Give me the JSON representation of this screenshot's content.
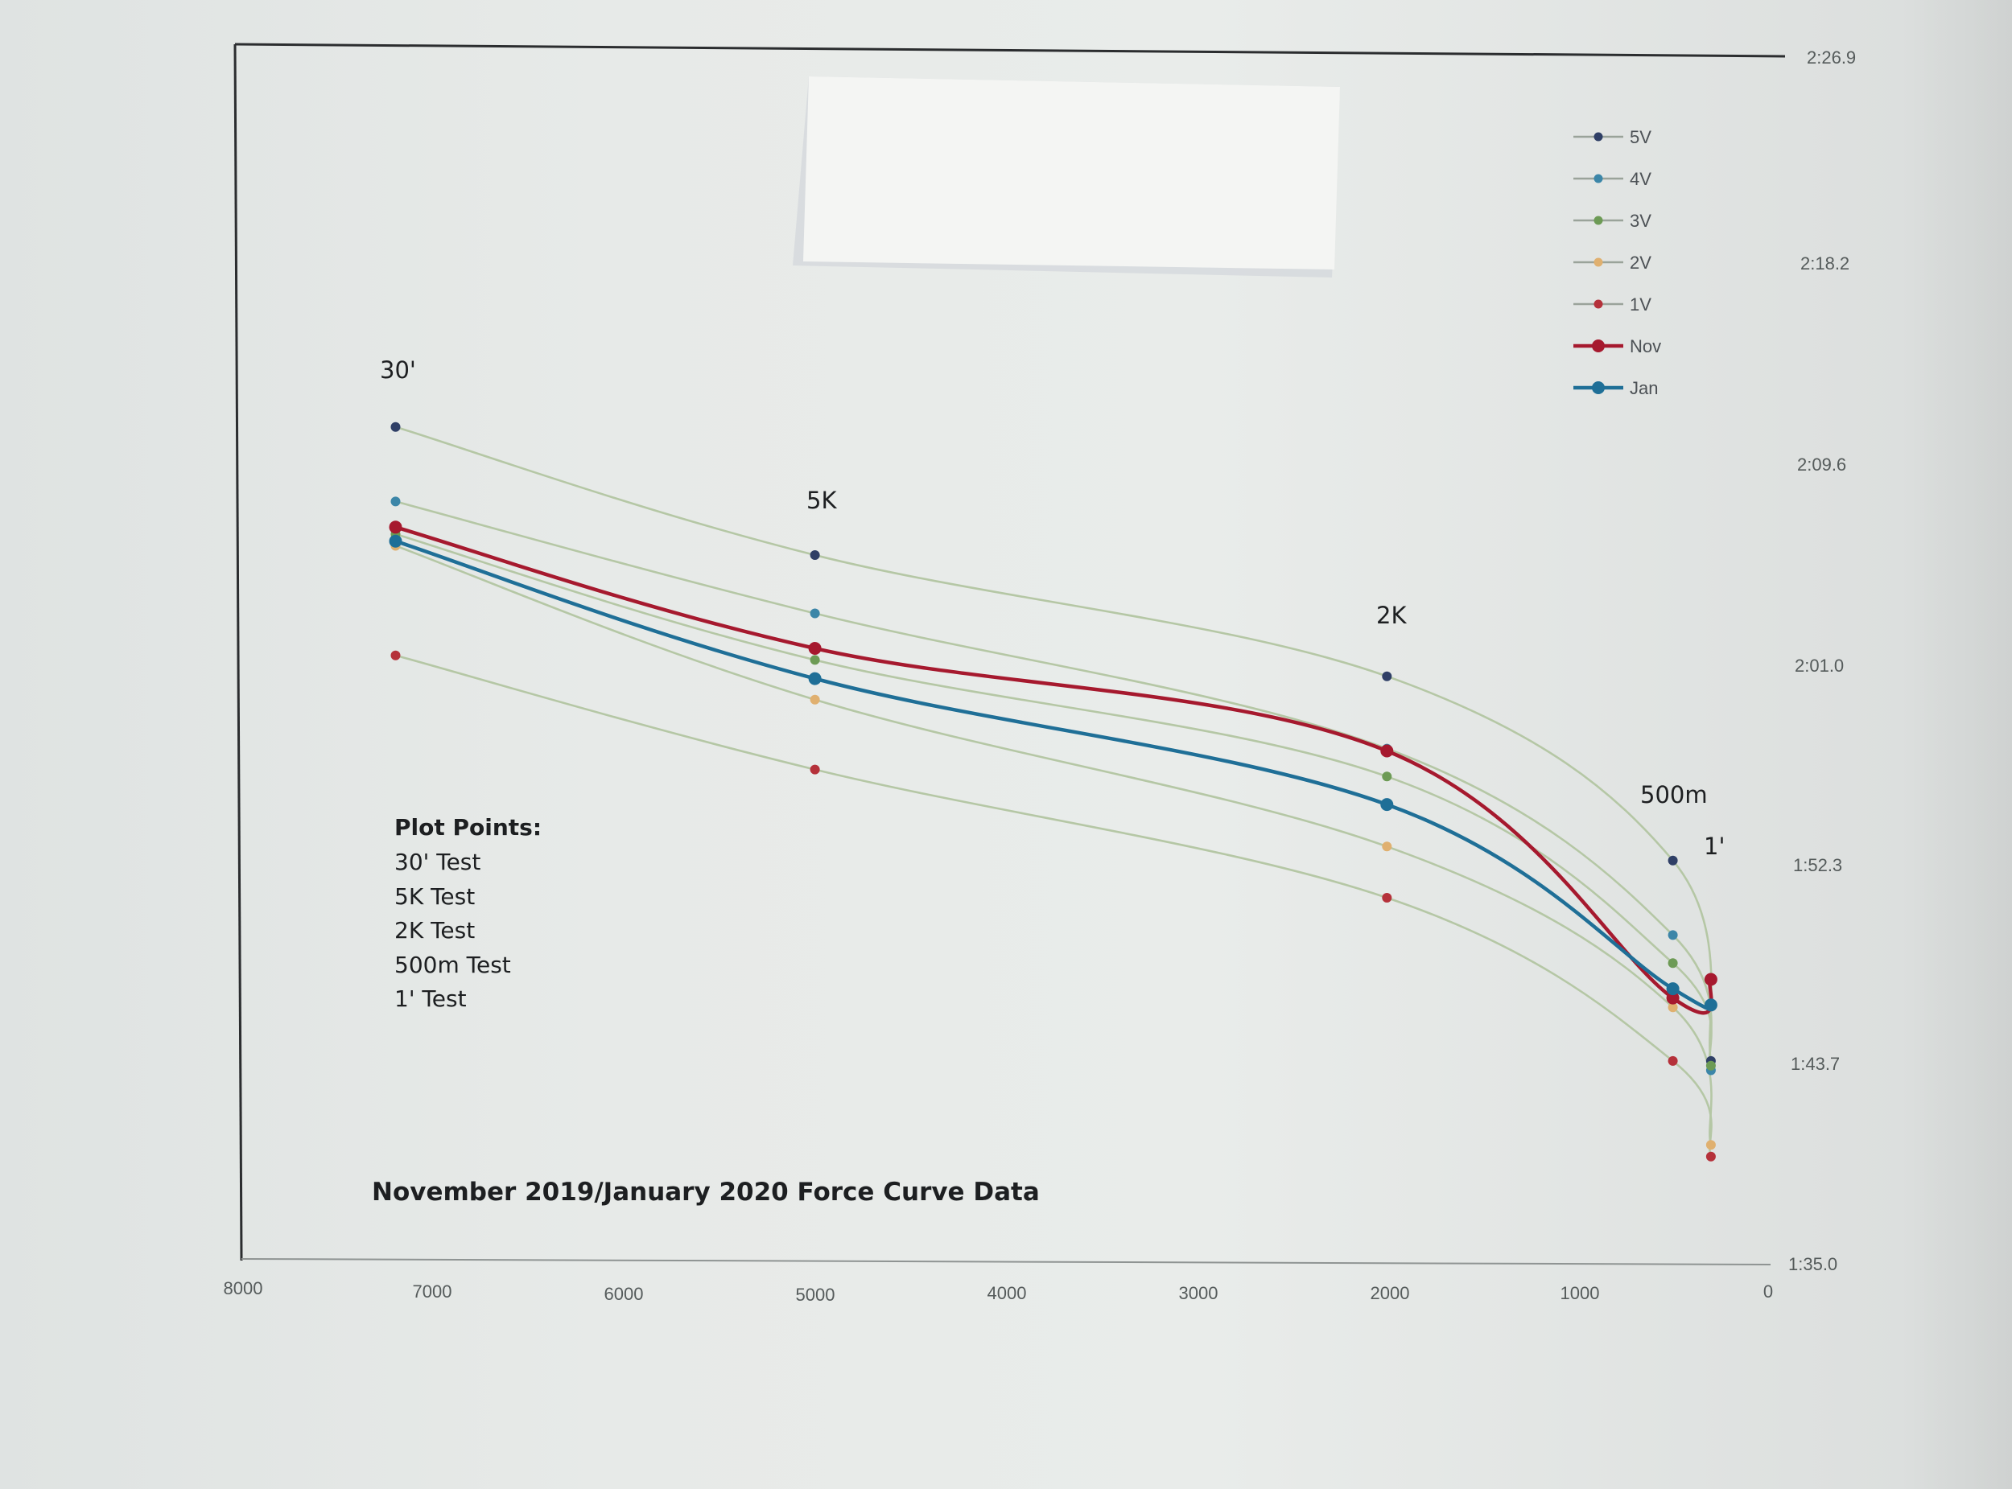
{
  "chart_data": {
    "type": "line",
    "title": "",
    "xlabel": "",
    "ylabel": "",
    "x_axis": {
      "reversed": true,
      "xlim": [
        8000,
        0
      ],
      "tick_labels": [
        "8000",
        "7000",
        "6000",
        "5000",
        "4000",
        "3000",
        "2000",
        "1000",
        "0"
      ]
    },
    "y_axis": {
      "position": "right",
      "ylim_seconds": [
        95.0,
        146.9
      ],
      "ticks_seconds": [
        95.0,
        103.7,
        112.3,
        121.0,
        129.6,
        138.2,
        146.9
      ],
      "tick_labels": [
        "1:35.0",
        "1:43.7",
        "1:52.3",
        "2:01.0",
        "2:09.6",
        "2:18.2",
        "2:26.9"
      ]
    },
    "x": [
      7200,
      5000,
      2000,
      500,
      300
    ],
    "point_labels": [
      "30'",
      "5K",
      "2K",
      "500m",
      "1'"
    ],
    "series": [
      {
        "name": "5V",
        "color": "#2f3f66",
        "line_color": "#b5c7a5",
        "thick": false,
        "values_seconds": [
          130.9,
          125.4,
          120.2,
          112.3,
          103.7
        ]
      },
      {
        "name": "4V",
        "color": "#3c86a8",
        "line_color": "#b5c7a5",
        "thick": false,
        "values_seconds": [
          127.7,
          122.9,
          117.1,
          109.1,
          103.3
        ]
      },
      {
        "name": "3V",
        "color": "#6d9b55",
        "line_color": "#b5c7a5",
        "thick": false,
        "values_seconds": [
          126.3,
          120.9,
          115.9,
          107.9,
          103.5
        ]
      },
      {
        "name": "2V",
        "color": "#e0b06f",
        "line_color": "#b5c7a5",
        "thick": false,
        "values_seconds": [
          125.8,
          119.2,
          112.9,
          106.0,
          100.1
        ]
      },
      {
        "name": "1V",
        "color": "#b5313a",
        "line_color": "#b5c7a5",
        "thick": false,
        "values_seconds": [
          121.1,
          116.2,
          110.7,
          103.7,
          99.6
        ]
      },
      {
        "name": "Nov",
        "color": "#a6192e",
        "line_color": "#a6192e",
        "thick": true,
        "values_seconds": [
          126.6,
          121.4,
          117.0,
          106.4,
          107.2
        ]
      },
      {
        "name": "Jan",
        "color": "#1f6f97",
        "line_color": "#1f6f97",
        "thick": true,
        "values_seconds": [
          126.0,
          120.1,
          114.7,
          106.8,
          106.1
        ]
      }
    ],
    "legend": {
      "placement": "top-right",
      "entries": [
        "5V",
        "4V",
        "3V",
        "2V",
        "1V",
        "Nov",
        "Jan"
      ]
    },
    "annotations": {
      "notes_title": "Plot Points:",
      "notes": [
        "30' Test",
        "5K Test",
        "2K Test",
        "500m Test",
        "1' Test"
      ],
      "caption": "November 2019/January 2020 Force Curve Data"
    },
    "grid": false
  }
}
